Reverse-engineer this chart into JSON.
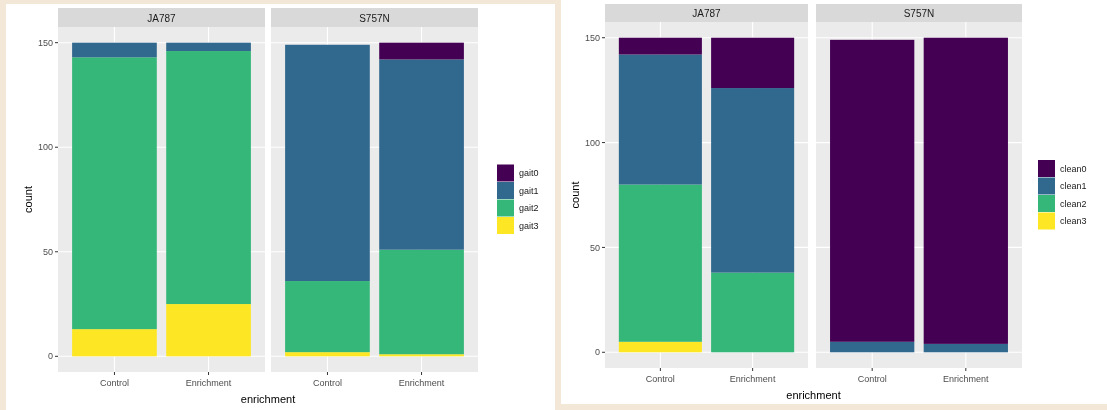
{
  "chart_data": [
    {
      "type": "bar",
      "title": "JA787",
      "stacked": true,
      "categories": [
        "Control",
        "Enrichment"
      ],
      "ylabel": "count",
      "xlabel": "enrichment",
      "ylim": [
        -7.5,
        157.5
      ],
      "yticks": [
        0,
        50,
        100,
        150
      ],
      "grid": true,
      "legend": false,
      "series": [
        {
          "color": "#fde725",
          "values": [
            13,
            25
          ]
        },
        {
          "color": "#35b779",
          "values": [
            130,
            121
          ]
        },
        {
          "color": "#31688e",
          "values": [
            7,
            4
          ]
        },
        {
          "color": "#440154",
          "values": [
            0,
            0
          ]
        }
      ]
    },
    {
      "type": "bar",
      "title": "S757N",
      "stacked": true,
      "categories": [
        "Control",
        "Enrichment"
      ],
      "ylim": [
        -7.5,
        157.5
      ],
      "yticks": [
        0,
        50,
        100,
        150
      ],
      "tick_labels": "x",
      "grid": true,
      "legend": "right",
      "series": [
        {
          "name": "gait3",
          "color": "#fde725",
          "values": [
            2,
            1
          ]
        },
        {
          "name": "gait2",
          "color": "#35b779",
          "values": [
            34,
            50
          ]
        },
        {
          "name": "gait1",
          "color": "#31688e",
          "values": [
            113,
            91
          ]
        },
        {
          "name": "gait0",
          "color": "#440154",
          "values": [
            0,
            8
          ]
        }
      ]
    },
    {
      "type": "bar",
      "title": "JA787",
      "stacked": true,
      "categories": [
        "Control",
        "Enrichment"
      ],
      "ylabel": "count",
      "xlabel": "enrichment",
      "ylim": [
        -7.5,
        157.5
      ],
      "yticks": [
        0,
        50,
        100,
        150
      ],
      "grid": true,
      "legend": false,
      "series": [
        {
          "color": "#fde725",
          "values": [
            5,
            0
          ]
        },
        {
          "color": "#35b779",
          "values": [
            75,
            38
          ]
        },
        {
          "color": "#31688e",
          "values": [
            62,
            88
          ]
        },
        {
          "color": "#440154",
          "values": [
            8,
            24
          ]
        }
      ]
    },
    {
      "type": "bar",
      "title": "S757N",
      "stacked": true,
      "categories": [
        "Control",
        "Enrichment"
      ],
      "ylim": [
        -7.5,
        157.5
      ],
      "yticks": [
        0,
        50,
        100,
        150
      ],
      "tick_labels": "x",
      "grid": true,
      "legend": "right",
      "series": [
        {
          "name": "clean3",
          "color": "#fde725",
          "values": [
            0,
            0
          ]
        },
        {
          "name": "clean2",
          "color": "#35b779",
          "values": [
            0,
            0
          ]
        },
        {
          "name": "clean1",
          "color": "#31688e",
          "values": [
            5,
            4
          ]
        },
        {
          "name": "clean0",
          "color": "#440154",
          "values": [
            144,
            146
          ]
        }
      ]
    }
  ]
}
